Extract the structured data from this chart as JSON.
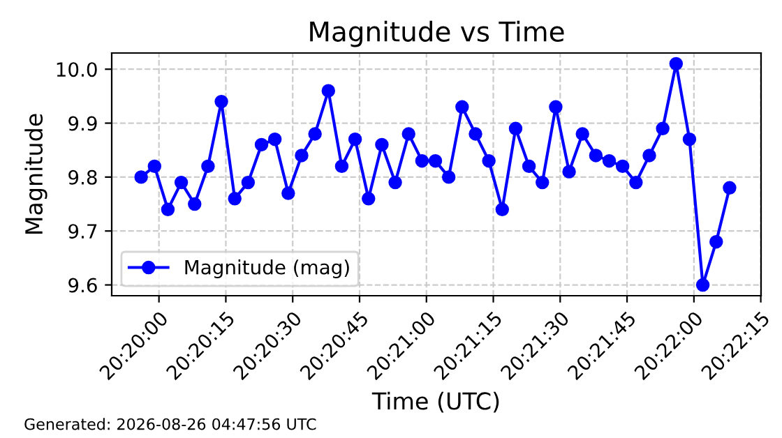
{
  "chart_data": {
    "type": "line",
    "title": "Magnitude vs Time",
    "xlabel": "Time (UTC)",
    "ylabel": "Magnitude",
    "x": [
      20.332222,
      20.333056,
      20.333889,
      20.334722,
      20.335556,
      20.336389,
      20.337222,
      20.338056,
      20.338889,
      20.339722,
      20.340556,
      20.341389,
      20.342222,
      20.343056,
      20.343889,
      20.344722,
      20.345556,
      20.346389,
      20.347222,
      20.348056,
      20.348889,
      20.349722,
      20.350556,
      20.351389,
      20.352222,
      20.353056,
      20.353889,
      20.354722,
      20.355556,
      20.356389,
      20.357222,
      20.358056,
      20.358889,
      20.359722,
      20.360556,
      20.361389,
      20.362222,
      20.363056,
      20.363889,
      20.364722,
      20.365556,
      20.366389,
      20.367222,
      20.368056,
      20.368889
    ],
    "series": [
      {
        "name": "Magnitude (mag)",
        "color": "#0000ff",
        "values": [
          9.8,
          9.82,
          9.74,
          9.79,
          9.75,
          9.82,
          9.94,
          9.76,
          9.79,
          9.86,
          9.87,
          9.77,
          9.84,
          9.88,
          9.96,
          9.82,
          9.87,
          9.76,
          9.86,
          9.79,
          9.88,
          9.83,
          9.83,
          9.8,
          9.93,
          9.88,
          9.83,
          9.74,
          9.89,
          9.82,
          9.79,
          9.93,
          9.81,
          9.88,
          9.84,
          9.83,
          9.82,
          9.79,
          9.84,
          9.89,
          10.01,
          9.87,
          9.6,
          9.68,
          9.78
        ]
      }
    ],
    "xlim": [
      20.330389,
      20.37085
    ],
    "xticks": [
      {
        "value": 20.333333,
        "label": "20:20:00"
      },
      {
        "value": 20.3375,
        "label": "20:20:15"
      },
      {
        "value": 20.341667,
        "label": "20:20:30"
      },
      {
        "value": 20.345833,
        "label": "20:20:45"
      },
      {
        "value": 20.35,
        "label": "20:21:00"
      },
      {
        "value": 20.354167,
        "label": "20:21:15"
      },
      {
        "value": 20.358333,
        "label": "20:21:30"
      },
      {
        "value": 20.3625,
        "label": "20:21:45"
      },
      {
        "value": 20.366667,
        "label": "20:22:00"
      },
      {
        "value": 20.370833,
        "label": "20:22:15"
      }
    ],
    "ylim": [
      9.58,
      10.03
    ],
    "yticks": [
      {
        "value": 9.6,
        "label": "9.6"
      },
      {
        "value": 9.7,
        "label": "9.7"
      },
      {
        "value": 9.8,
        "label": "9.8"
      },
      {
        "value": 9.9,
        "label": "9.9"
      },
      {
        "value": 10.0,
        "label": "10.0"
      }
    ],
    "grid": true,
    "legend": "bottom left",
    "marker": "circle",
    "line_style": "solid",
    "annotations": [
      "Generated: 2026-08-26 04:47:56 UTC"
    ]
  }
}
